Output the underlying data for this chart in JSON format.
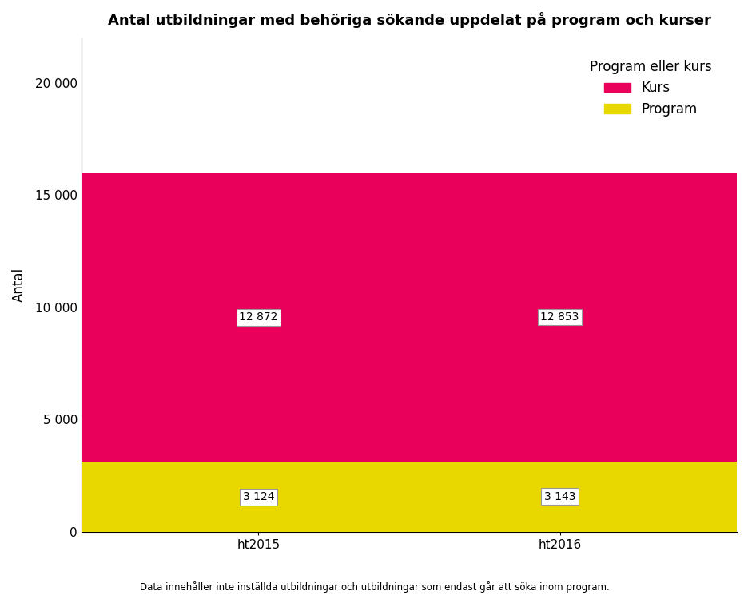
{
  "title": "Antal utbildningar med behöriga sökande uppdelat på program och kurser",
  "categories": [
    "ht2015",
    "ht2016"
  ],
  "program_values": [
    3124,
    3143
  ],
  "kurs_values": [
    12872,
    12853
  ],
  "program_color": "#E8D800",
  "kurs_color": "#E8005A",
  "ylabel": "Antal",
  "ylim": [
    0,
    22000
  ],
  "yticks": [
    0,
    5000,
    10000,
    15000,
    20000
  ],
  "ytick_labels": [
    "0",
    "5 000",
    "10 000",
    "15 000",
    "20 000"
  ],
  "legend_title": "Program eller kurs",
  "legend_labels": [
    "Kurs",
    "Program"
  ],
  "footnote": "Data innehåller inte inställda utbildningar och utbildningar som endast går att söka inom program.",
  "prog_labels": [
    "3 124",
    "3 143"
  ],
  "kurs_labels": [
    "12 872",
    "12 853"
  ],
  "bar_width": 0.65,
  "background_color": "#ffffff",
  "title_fontsize": 13,
  "axis_fontsize": 12,
  "tick_fontsize": 11,
  "legend_fontsize": 12,
  "annotation_fontsize": 10,
  "bar_positions": [
    0.27,
    0.73
  ]
}
